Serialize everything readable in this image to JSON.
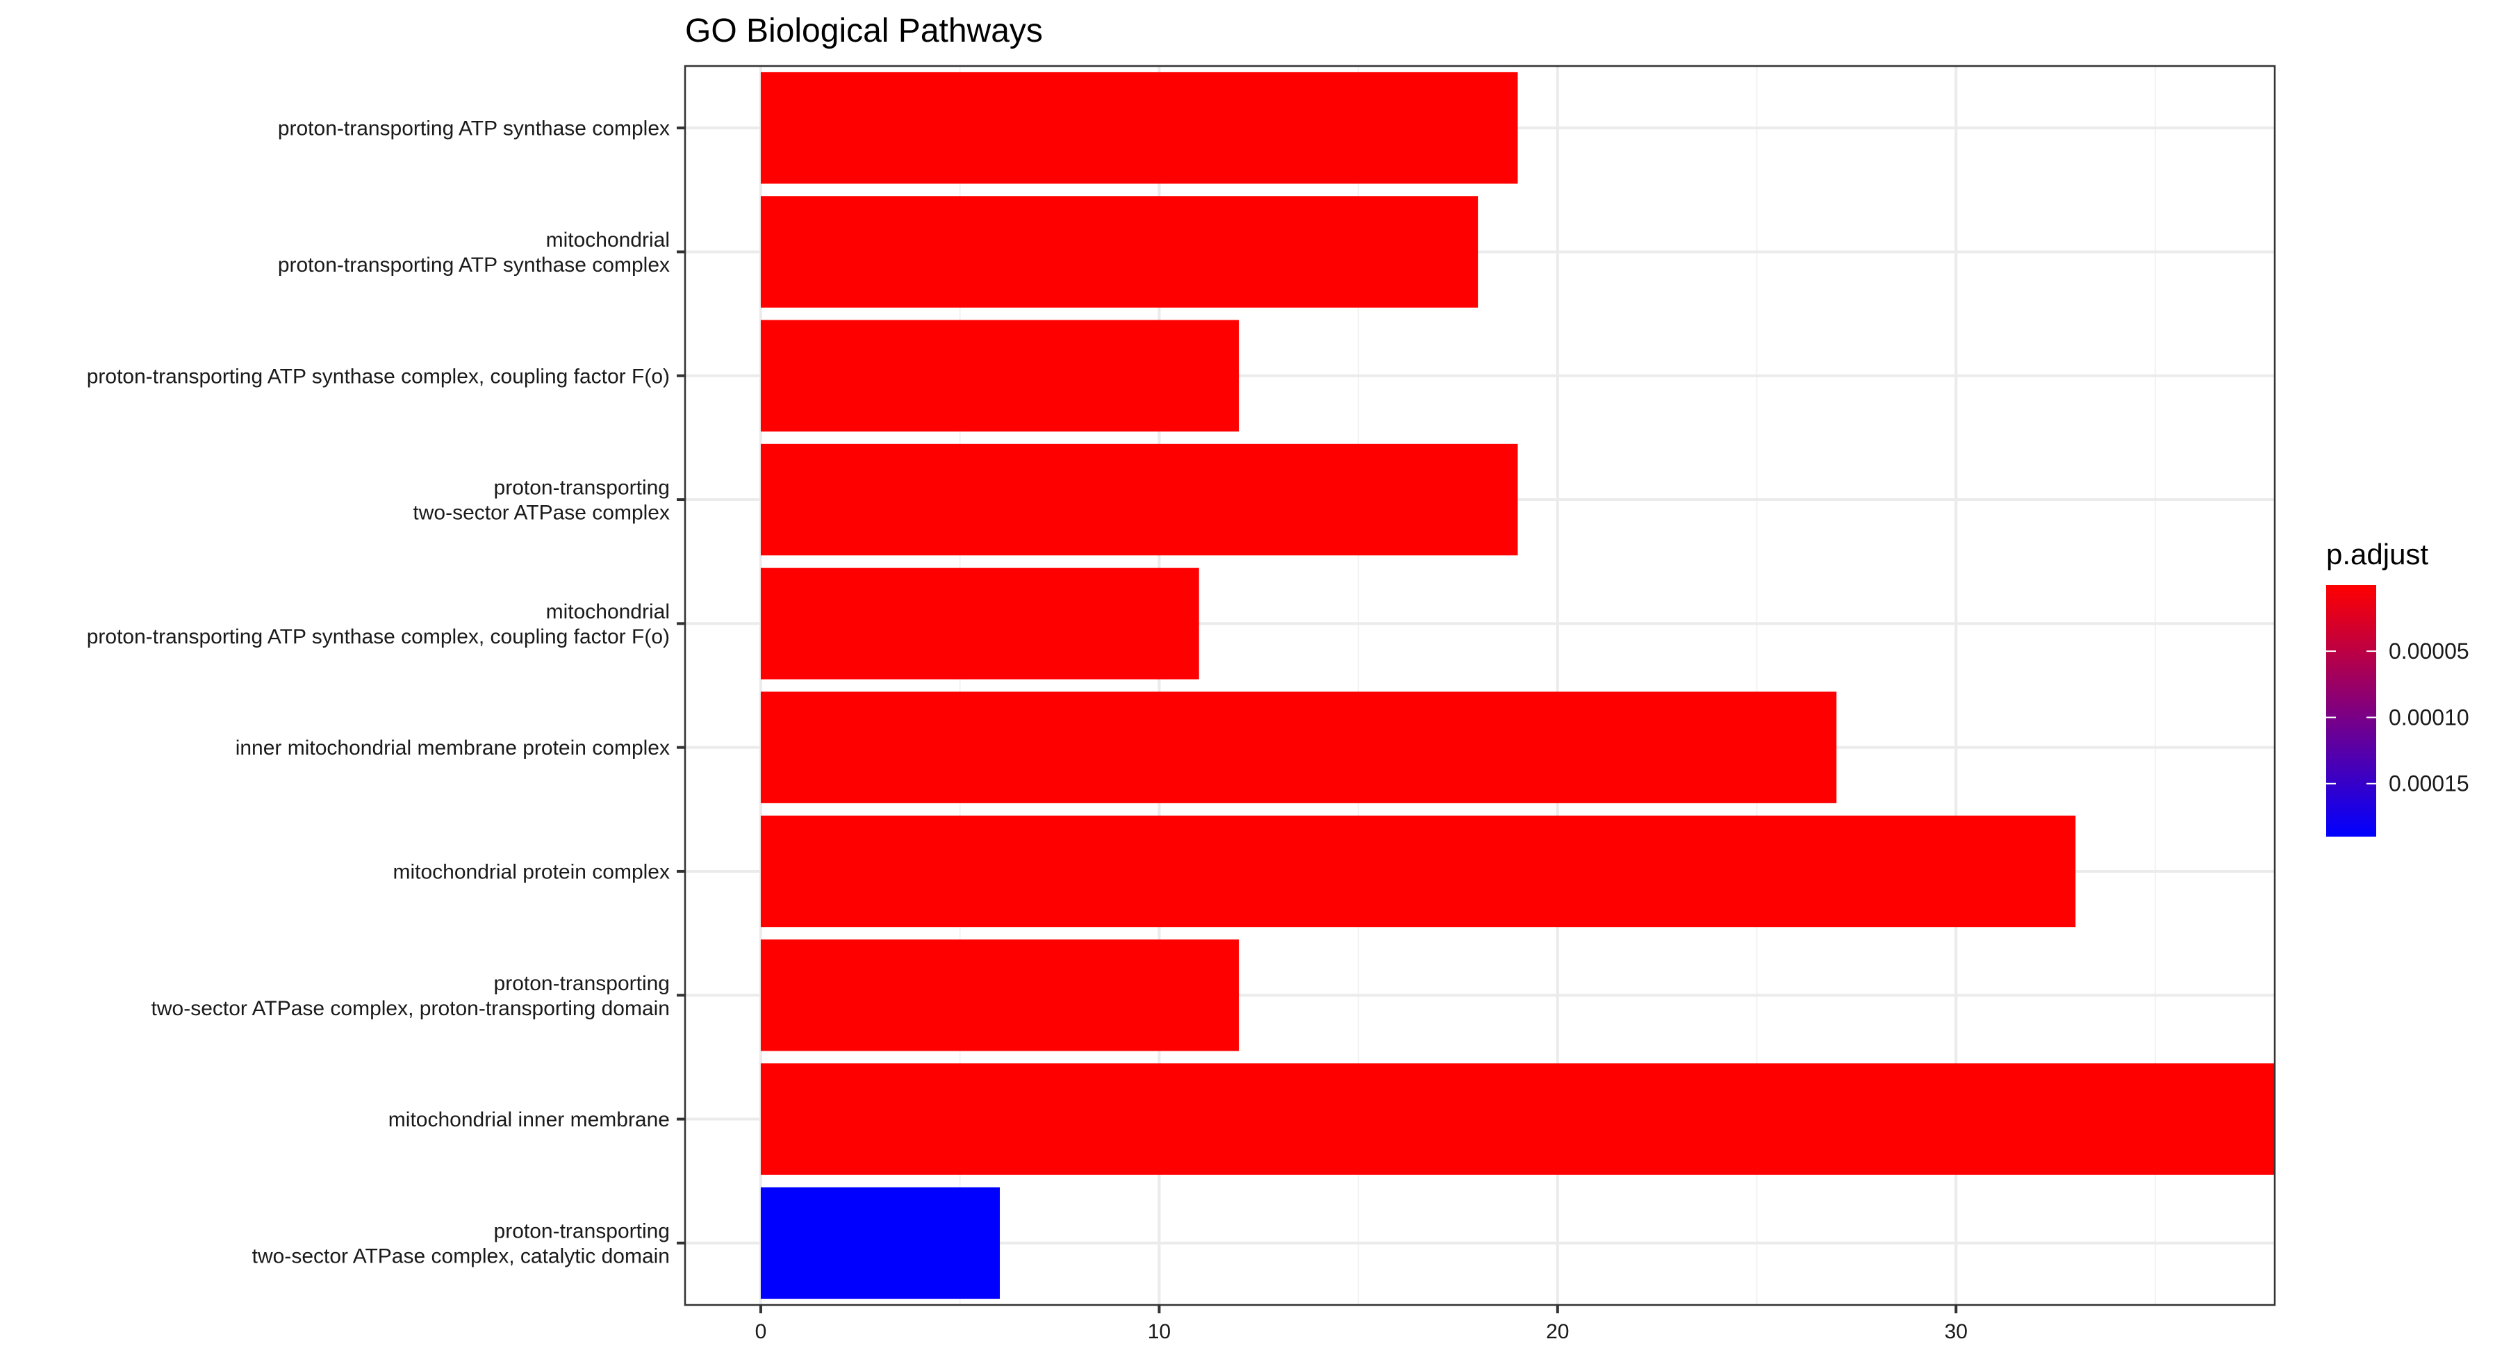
{
  "chart_data": {
    "type": "bar",
    "orientation": "horizontal",
    "title": "GO Biological Pathways",
    "xlabel": "",
    "ylabel": "",
    "xlim": [
      -1.9,
      38
    ],
    "x_ticks": [
      0,
      10,
      20,
      30
    ],
    "x_minor_ticks": [
      5,
      15,
      25,
      35
    ],
    "grid": true,
    "legend_position": "right",
    "categories": [
      [
        "proton-transporting ATP synthase complex"
      ],
      [
        "mitochondrial",
        "proton-transporting ATP synthase complex"
      ],
      [
        "proton-transporting ATP synthase complex, coupling factor F(o)"
      ],
      [
        "proton-transporting",
        "two-sector ATPase complex"
      ],
      [
        "mitochondrial",
        "proton-transporting ATP synthase complex, coupling factor F(o)"
      ],
      [
        "inner mitochondrial membrane protein complex"
      ],
      [
        "mitochondrial protein complex"
      ],
      [
        "proton-transporting",
        "two-sector ATPase complex, proton-transporting domain"
      ],
      [
        "mitochondrial inner membrane"
      ],
      [
        "proton-transporting",
        "two-sector ATPase complex, catalytic domain"
      ]
    ],
    "values": [
      19,
      18,
      12,
      19,
      11,
      27,
      33,
      12,
      38,
      6
    ],
    "p_adjust": [
      1e-07,
      1e-07,
      1e-07,
      1e-07,
      1e-07,
      1e-07,
      1e-07,
      1e-07,
      1e-07,
      0.00019
    ],
    "colorbar": {
      "title": "p.adjust",
      "range": [
        1e-07,
        0.00019
      ],
      "low_color": "#ff0000",
      "high_color": "#0000ff",
      "ticks": [
        5e-05,
        0.0001,
        0.00015
      ],
      "tick_labels": [
        "0.00005",
        "0.00010",
        "0.00015"
      ]
    },
    "colors": {
      "panel_border": "#333333",
      "grid_major": "#ebebeb",
      "grid_minor": "#f3f3f3",
      "axis_text": "#000000"
    }
  }
}
